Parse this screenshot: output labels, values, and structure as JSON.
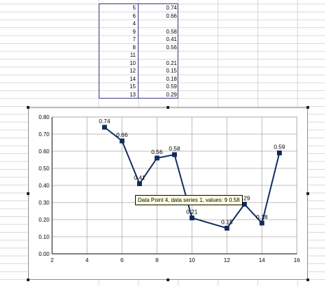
{
  "sheet": {
    "rows": [
      {
        "x": "5",
        "y": "0.74"
      },
      {
        "x": "6",
        "y": "0.66"
      },
      {
        "x": "4",
        "y": ""
      },
      {
        "x": "9",
        "y": "0.58"
      },
      {
        "x": "7",
        "y": "0.41"
      },
      {
        "x": "8",
        "y": "0.56"
      },
      {
        "x": "11",
        "y": ""
      },
      {
        "x": "10",
        "y": "0.21"
      },
      {
        "x": "12",
        "y": "0.15"
      },
      {
        "x": "14",
        "y": "0.18"
      },
      {
        "x": "15",
        "y": "0.59"
      },
      {
        "x": "13",
        "y": "0.29"
      }
    ]
  },
  "tooltip": {
    "text": "Data Point 4, data series 1, values: 9 0.58"
  },
  "chart_data": {
    "type": "line",
    "title": "",
    "xlabel": "",
    "ylabel": "",
    "xlim": [
      2,
      16
    ],
    "ylim": [
      0,
      0.8
    ],
    "xticks": [
      "2",
      "4",
      "6",
      "8",
      "10",
      "12",
      "14",
      "16"
    ],
    "yticks": [
      "0.00",
      "0.10",
      "0.20",
      "0.30",
      "0.40",
      "0.50",
      "0.60",
      "0.70",
      "0.80"
    ],
    "grid": true,
    "legend": "none",
    "colors": {
      "line": "#0f2b5c",
      "marker": "#0f2b5c",
      "grid": "#a6a6a6",
      "axis": "#000000"
    },
    "series": [
      {
        "points": [
          {
            "x": 5,
            "y": 0.74,
            "label": "0.74"
          },
          {
            "x": 6,
            "y": 0.66,
            "label": "0.66"
          },
          {
            "x": 7,
            "y": 0.41,
            "label": "0.41"
          },
          {
            "x": 8,
            "y": 0.56,
            "label": "0.56"
          },
          {
            "x": 9,
            "y": 0.58,
            "label": "0.58"
          },
          {
            "x": 10,
            "y": 0.21,
            "label": "0.21"
          },
          {
            "x": 12,
            "y": 0.15,
            "label": "0.15"
          },
          {
            "x": 13,
            "y": 0.29,
            "label": "0.29"
          },
          {
            "x": 14,
            "y": 0.18,
            "label": "0.18"
          },
          {
            "x": 15,
            "y": 0.59,
            "label": "0.59"
          }
        ]
      }
    ]
  }
}
